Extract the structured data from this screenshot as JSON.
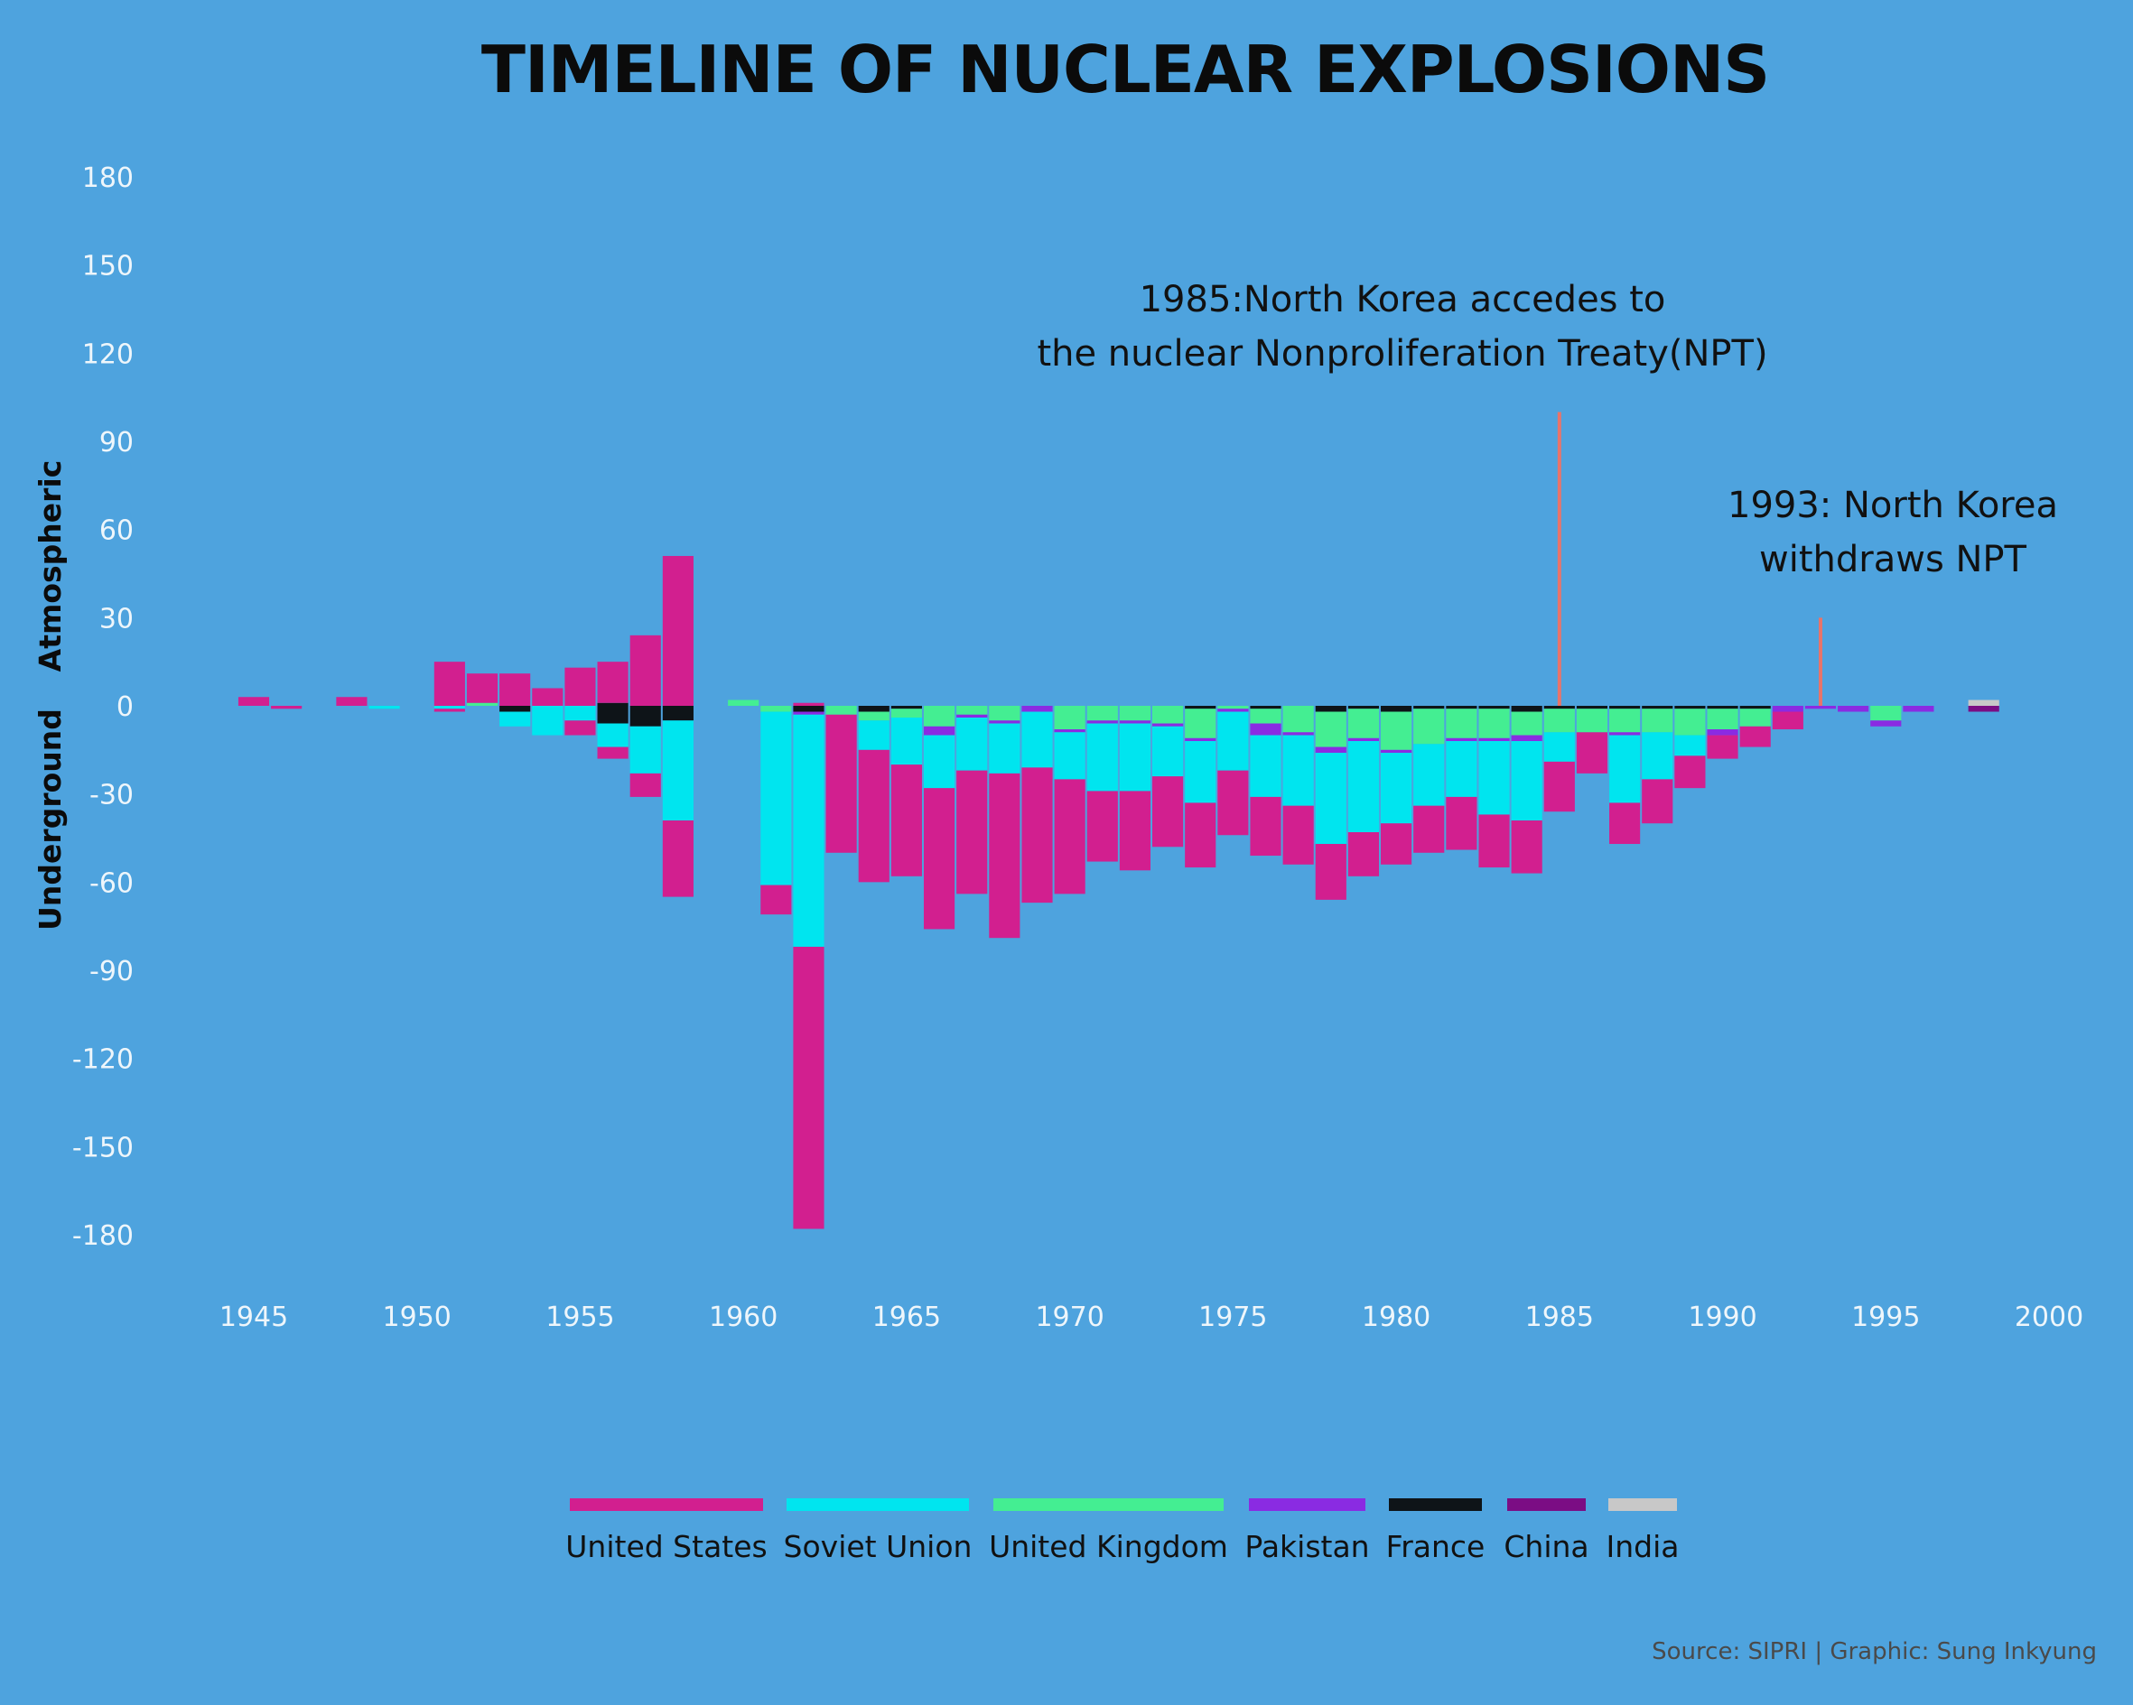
{
  "chart_data": {
    "type": "bar",
    "title": "TIMELINE OF NUCLEAR EXPLOSIONS",
    "y_group_labels": {
      "positive": "Atmospheric",
      "negative": "Underground"
    },
    "ylim": [
      -180,
      180
    ],
    "y_ticks": [
      180,
      150,
      120,
      90,
      60,
      30,
      0,
      -30,
      -60,
      -90,
      -120,
      -150,
      -180
    ],
    "xlim": [
      1945,
      2000
    ],
    "x_ticks": [
      1945,
      1950,
      1955,
      1960,
      1965,
      1970,
      1975,
      1980,
      1985,
      1990,
      1995,
      2000
    ],
    "series_order": [
      "United States",
      "Soviet Union",
      "United Kingdom",
      "Pakistan",
      "France",
      "China",
      "India"
    ],
    "stack_order": [
      "France",
      "China",
      "United Kingdom",
      "India",
      "Pakistan",
      "Soviet Union",
      "United States"
    ],
    "colors": {
      "United States": "#d21f8f",
      "Soviet Union": "#00e5ef",
      "United Kingdom": "#44ee92",
      "Pakistan": "#8a2be2",
      "France": "#0e1418",
      "China": "#7b0d84",
      "India": "#c8c8c8"
    },
    "years": [
      {
        "year": 1945,
        "atm": {
          "United States": 3
        },
        "und": {}
      },
      {
        "year": 1946,
        "atm": {},
        "und": {
          "United States": 1
        }
      },
      {
        "year": 1948,
        "atm": {
          "United States": 3
        },
        "und": {}
      },
      {
        "year": 1949,
        "atm": {},
        "und": {
          "Soviet Union": 1
        }
      },
      {
        "year": 1951,
        "atm": {
          "United States": 15
        },
        "und": {
          "Soviet Union": 1,
          "United States": 1
        }
      },
      {
        "year": 1952,
        "atm": {
          "United Kingdom": 1,
          "United States": 10
        },
        "und": {}
      },
      {
        "year": 1953,
        "atm": {
          "United States": 11
        },
        "und": {
          "France": 2,
          "Soviet Union": 5
        }
      },
      {
        "year": 1954,
        "atm": {
          "United States": 6
        },
        "und": {
          "Soviet Union": 10
        }
      },
      {
        "year": 1955,
        "atm": {
          "United States": 13
        },
        "und": {
          "Soviet Union": 5,
          "United States": 5
        }
      },
      {
        "year": 1956,
        "atm": {
          "France": 1,
          "United States": 14
        },
        "und": {
          "France": 6,
          "Soviet Union": 8,
          "United States": 4
        }
      },
      {
        "year": 1957,
        "atm": {
          "United States": 24
        },
        "und": {
          "France": 7,
          "Soviet Union": 16,
          "United States": 8
        }
      },
      {
        "year": 1958,
        "atm": {
          "United States": 51
        },
        "und": {
          "France": 5,
          "Soviet Union": 34,
          "United States": 26
        }
      },
      {
        "year": 1960,
        "atm": {
          "United Kingdom": 2
        },
        "und": {}
      },
      {
        "year": 1961,
        "atm": {},
        "und": {
          "United Kingdom": 2,
          "Soviet Union": 59,
          "United States": 10
        }
      },
      {
        "year": 1962,
        "atm": {
          "United States": 1
        },
        "und": {
          "France": 2,
          "Pakistan": 1,
          "Soviet Union": 79,
          "United States": 96
        }
      },
      {
        "year": 1963,
        "atm": {},
        "und": {
          "United Kingdom": 3,
          "United States": 47
        }
      },
      {
        "year": 1964,
        "atm": {},
        "und": {
          "France": 2,
          "United Kingdom": 3,
          "Soviet Union": 10,
          "United States": 45
        }
      },
      {
        "year": 1965,
        "atm": {},
        "und": {
          "France": 1,
          "United Kingdom": 3,
          "Soviet Union": 16,
          "United States": 38
        }
      },
      {
        "year": 1966,
        "atm": {},
        "und": {
          "Pakistan": 3,
          "United Kingdom": 7,
          "Soviet Union": 18,
          "United States": 48
        }
      },
      {
        "year": 1967,
        "atm": {},
        "und": {
          "Pakistan": 1,
          "United Kingdom": 3,
          "Soviet Union": 18,
          "United States": 42
        }
      },
      {
        "year": 1968,
        "atm": {},
        "und": {
          "Pakistan": 1,
          "United Kingdom": 5,
          "Soviet Union": 17,
          "United States": 56
        }
      },
      {
        "year": 1969,
        "atm": {},
        "und": {
          "Pakistan": 2,
          "Soviet Union": 19,
          "United States": 46
        }
      },
      {
        "year": 1970,
        "atm": {},
        "und": {
          "Pakistan": 1,
          "United Kingdom": 8,
          "Soviet Union": 16,
          "United States": 39
        }
      },
      {
        "year": 1971,
        "atm": {},
        "und": {
          "Pakistan": 1,
          "United Kingdom": 5,
          "Soviet Union": 23,
          "United States": 24
        }
      },
      {
        "year": 1972,
        "atm": {},
        "und": {
          "Pakistan": 1,
          "United Kingdom": 5,
          "Soviet Union": 23,
          "United States": 27
        }
      },
      {
        "year": 1973,
        "atm": {},
        "und": {
          "Pakistan": 1,
          "United Kingdom": 6,
          "Soviet Union": 17,
          "United States": 24
        }
      },
      {
        "year": 1974,
        "atm": {},
        "und": {
          "France": 1,
          "Pakistan": 1,
          "United Kingdom": 10,
          "Soviet Union": 21,
          "United States": 22
        }
      },
      {
        "year": 1975,
        "atm": {},
        "und": {
          "Pakistan": 1,
          "United Kingdom": 1,
          "Soviet Union": 20,
          "United States": 22
        }
      },
      {
        "year": 1976,
        "atm": {},
        "und": {
          "France": 1,
          "Pakistan": 4,
          "United Kingdom": 5,
          "Soviet Union": 21,
          "United States": 20
        }
      },
      {
        "year": 1977,
        "atm": {},
        "und": {
          "Pakistan": 1,
          "United Kingdom": 9,
          "Soviet Union": 24,
          "United States": 20
        }
      },
      {
        "year": 1978,
        "atm": {},
        "und": {
          "France": 2,
          "Pakistan": 2,
          "United Kingdom": 12,
          "Soviet Union": 31,
          "United States": 19
        }
      },
      {
        "year": 1979,
        "atm": {},
        "und": {
          "France": 1,
          "Pakistan": 1,
          "United Kingdom": 10,
          "Soviet Union": 31,
          "United States": 15
        }
      },
      {
        "year": 1980,
        "atm": {},
        "und": {
          "France": 2,
          "Pakistan": 1,
          "United Kingdom": 13,
          "Soviet Union": 24,
          "United States": 14
        }
      },
      {
        "year": 1981,
        "atm": {},
        "und": {
          "France": 1,
          "United Kingdom": 12,
          "Soviet Union": 21,
          "United States": 16
        }
      },
      {
        "year": 1982,
        "atm": {},
        "und": {
          "France": 1,
          "Pakistan": 1,
          "United Kingdom": 10,
          "Soviet Union": 19,
          "United States": 18
        }
      },
      {
        "year": 1983,
        "atm": {},
        "und": {
          "France": 1,
          "Pakistan": 1,
          "United Kingdom": 10,
          "Soviet Union": 25,
          "United States": 18
        }
      },
      {
        "year": 1984,
        "atm": {},
        "und": {
          "France": 2,
          "Pakistan": 2,
          "United Kingdom": 8,
          "Soviet Union": 27,
          "United States": 18
        }
      },
      {
        "year": 1985,
        "atm": {},
        "und": {
          "France": 1,
          "United Kingdom": 8,
          "Soviet Union": 10,
          "United States": 17
        }
      },
      {
        "year": 1986,
        "atm": {},
        "und": {
          "France": 1,
          "United Kingdom": 8,
          "United States": 14
        }
      },
      {
        "year": 1987,
        "atm": {},
        "und": {
          "France": 1,
          "Pakistan": 1,
          "United Kingdom": 8,
          "Soviet Union": 23,
          "United States": 14
        }
      },
      {
        "year": 1988,
        "atm": {},
        "und": {
          "France": 1,
          "United Kingdom": 8,
          "Soviet Union": 16,
          "United States": 15
        }
      },
      {
        "year": 1989,
        "atm": {},
        "und": {
          "France": 1,
          "United Kingdom": 9,
          "Soviet Union": 7,
          "United States": 11
        }
      },
      {
        "year": 1990,
        "atm": {},
        "und": {
          "France": 1,
          "Pakistan": 2,
          "United Kingdom": 7,
          "United States": 8
        }
      },
      {
        "year": 1991,
        "atm": {},
        "und": {
          "France": 1,
          "United Kingdom": 6,
          "United States": 7
        }
      },
      {
        "year": 1992,
        "atm": {},
        "und": {
          "Pakistan": 2,
          "United States": 6
        }
      },
      {
        "year": 1993,
        "atm": {},
        "und": {
          "Pakistan": 1
        }
      },
      {
        "year": 1994,
        "atm": {},
        "und": {
          "Pakistan": 2
        }
      },
      {
        "year": 1995,
        "atm": {},
        "und": {
          "United Kingdom": 5,
          "Pakistan": 2
        }
      },
      {
        "year": 1996,
        "atm": {},
        "und": {
          "Pakistan": 2
        }
      },
      {
        "year": 1998,
        "atm": {
          "India": 2
        },
        "und": {
          "China": 2
        }
      }
    ],
    "annotations": [
      {
        "year": 1985,
        "top": 100,
        "lines": [
          "1985:North Korea accedes to",
          "the nuclear Nonproliferation Treaty(NPT)"
        ]
      },
      {
        "year": 1993,
        "top": 30,
        "lines": [
          "1993: North Korea",
          "withdraws NPT"
        ]
      }
    ],
    "annotation_line_color": "#e8746a",
    "legend": {
      "placement": "bottom-center",
      "items": [
        "United States",
        "Soviet Union",
        "United Kingdom",
        "Pakistan",
        "France",
        "China",
        "India"
      ]
    },
    "source": "Source: SIPRI | Graphic: Sung Inkyung"
  }
}
